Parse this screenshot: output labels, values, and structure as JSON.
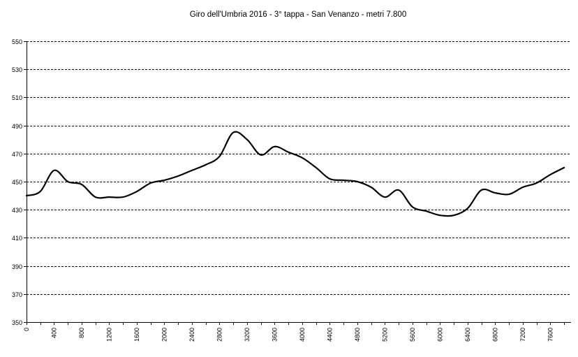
{
  "chart_data": {
    "type": "line",
    "title": "Giro dell'Umbria 2016 - 3° tappa - San Venanzo - metri 7.800",
    "xlabel": "",
    "ylabel": "",
    "xlim": [
      0,
      7900
    ],
    "ylim": [
      350,
      550
    ],
    "yticks": [
      350,
      370,
      390,
      410,
      430,
      450,
      470,
      490,
      510,
      530,
      550
    ],
    "xticks": [
      0,
      400,
      800,
      1200,
      1600,
      2000,
      2400,
      2800,
      3200,
      3600,
      4000,
      4400,
      4800,
      5200,
      5600,
      6000,
      6400,
      6800,
      7200,
      7600
    ],
    "ytick_labels": [
      "350",
      "370",
      "390",
      "410",
      "430",
      "450",
      "470",
      "490",
      "510",
      "530",
      "550"
    ],
    "xtick_labels": [
      "0",
      "400",
      "800",
      "1200",
      "1600",
      "2000",
      "2400",
      "2800",
      "3200",
      "3600",
      "4000",
      "4400",
      "4800",
      "5200",
      "5600",
      "6000",
      "6400",
      "6800",
      "7200",
      "7600"
    ],
    "grid": true,
    "legend": "none",
    "series": [
      {
        "color": "#000000",
        "x": [
          0,
          200,
          400,
          600,
          800,
          1000,
          1200,
          1400,
          1600,
          1800,
          2000,
          2200,
          2400,
          2600,
          2800,
          3000,
          3200,
          3400,
          3600,
          3800,
          4000,
          4200,
          4400,
          4600,
          4800,
          5000,
          5200,
          5400,
          5600,
          5800,
          6000,
          6200,
          6400,
          6600,
          6800,
          7000,
          7200,
          7400,
          7600,
          7800
        ],
        "y": [
          440,
          443,
          458,
          450,
          448,
          439,
          439,
          439,
          443,
          449,
          451,
          454,
          458,
          462,
          468,
          485,
          480,
          469,
          475,
          471,
          467,
          460,
          452,
          451,
          450,
          446,
          439,
          444,
          432,
          429,
          426,
          426,
          431,
          444,
          442,
          441,
          446,
          449,
          455,
          460
        ]
      }
    ]
  }
}
